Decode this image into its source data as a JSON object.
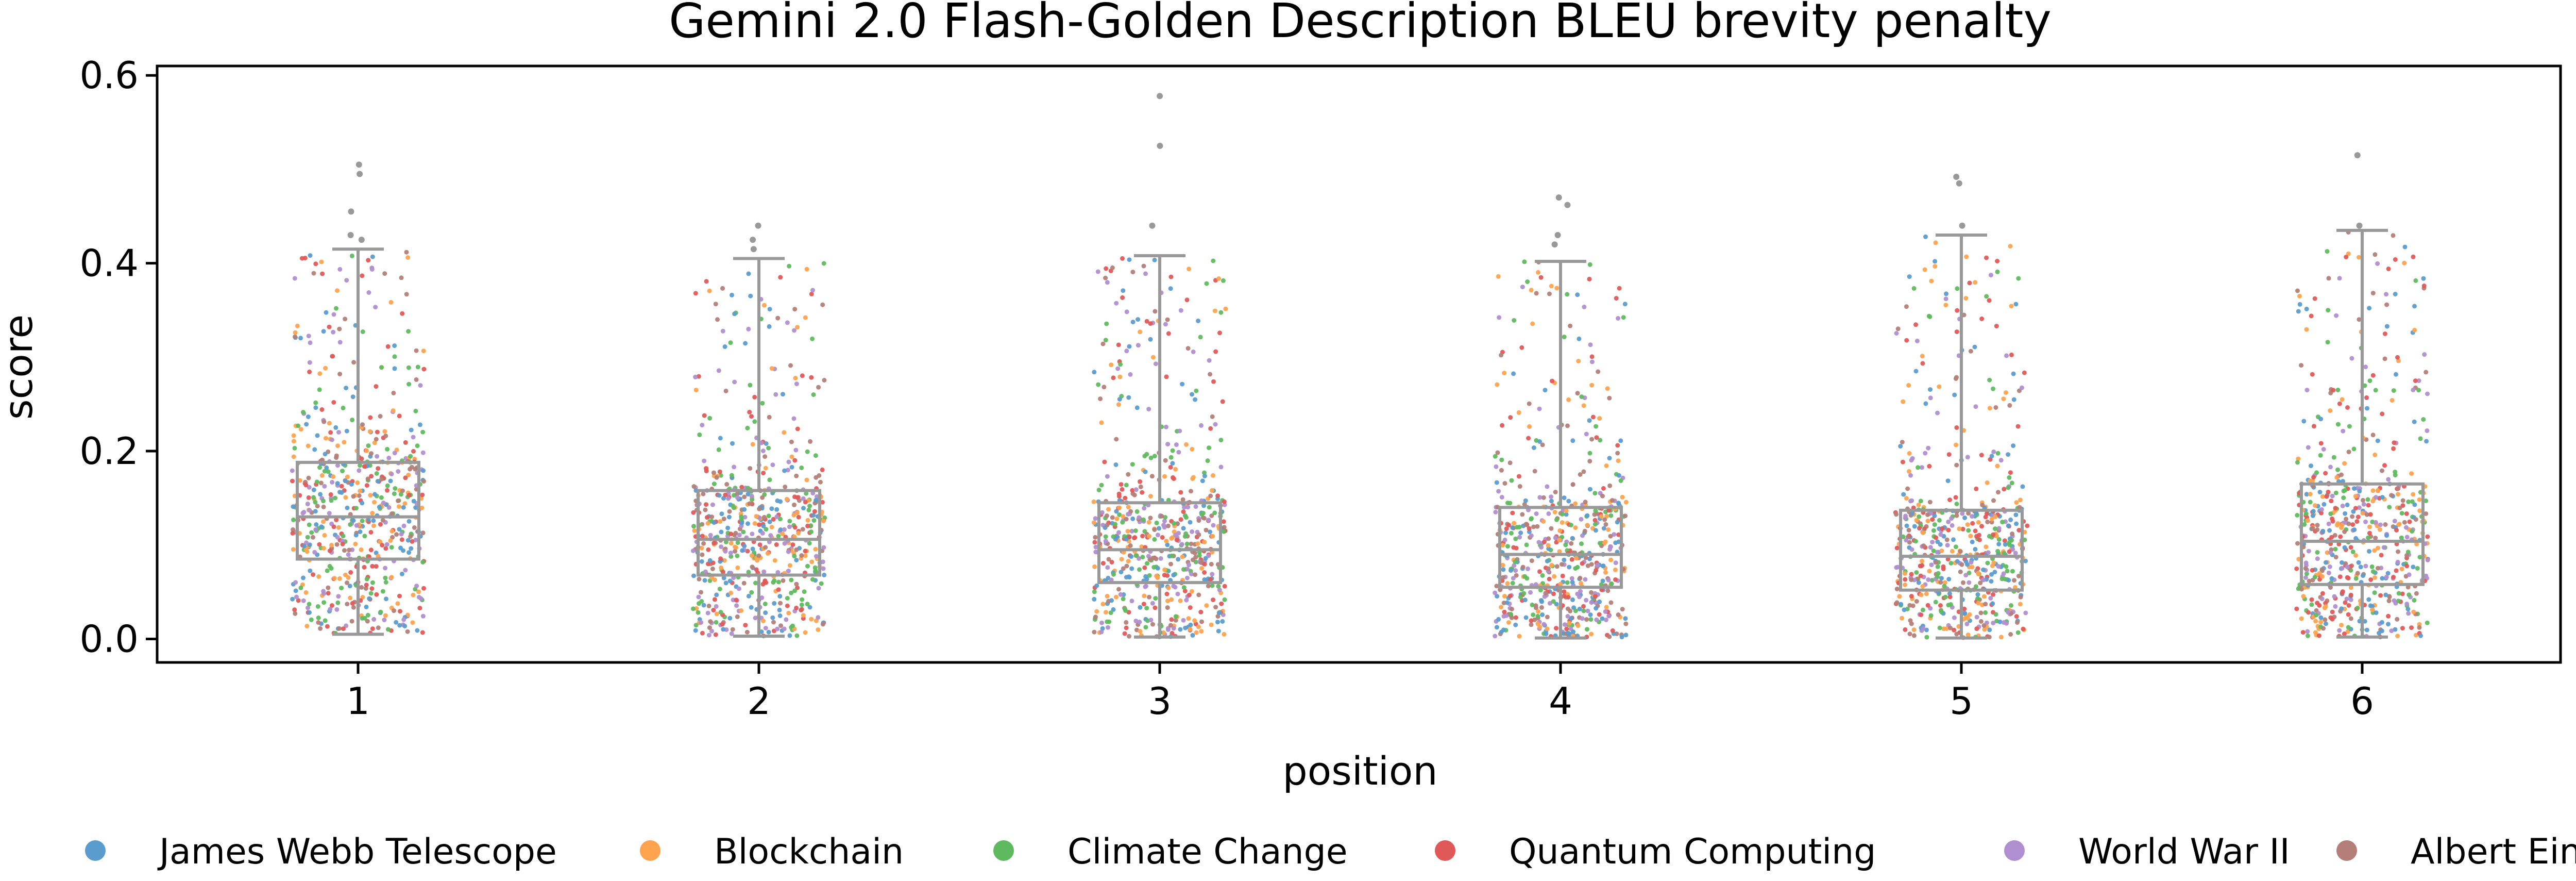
{
  "chart_data": {
    "type": "box_strip",
    "title": "Gemini 2.0 Flash-Golden Description BLEU brevity penalty",
    "xlabel": "position",
    "ylabel": "score",
    "categories": [
      "1",
      "2",
      "3",
      "4",
      "5",
      "6"
    ],
    "ylim": [
      -0.025,
      0.61
    ],
    "yticks": [
      "0.0",
      "0.2",
      "0.4",
      "0.6"
    ],
    "box_color": "#999999",
    "boxes": [
      {
        "position": "1",
        "q1": 0.085,
        "median": 0.13,
        "q3": 0.188,
        "whisker_low": 0.005,
        "whisker_high": 0.415,
        "outliers": [
          0.425,
          0.43,
          0.455,
          0.495,
          0.505
        ]
      },
      {
        "position": "2",
        "q1": 0.068,
        "median": 0.106,
        "q3": 0.158,
        "whisker_low": 0.003,
        "whisker_high": 0.405,
        "outliers": [
          0.415,
          0.425,
          0.44
        ]
      },
      {
        "position": "3",
        "q1": 0.06,
        "median": 0.095,
        "q3": 0.145,
        "whisker_low": 0.002,
        "whisker_high": 0.408,
        "outliers": [
          0.44,
          0.525,
          0.578
        ]
      },
      {
        "position": "4",
        "q1": 0.055,
        "median": 0.09,
        "q3": 0.14,
        "whisker_low": 0.001,
        "whisker_high": 0.402,
        "outliers": [
          0.42,
          0.43,
          0.462,
          0.47
        ]
      },
      {
        "position": "5",
        "q1": 0.052,
        "median": 0.088,
        "q3": 0.137,
        "whisker_low": 0.001,
        "whisker_high": 0.43,
        "outliers": [
          0.44,
          0.485,
          0.492
        ]
      },
      {
        "position": "6",
        "q1": 0.058,
        "median": 0.104,
        "q3": 0.165,
        "whisker_low": 0.002,
        "whisker_high": 0.435,
        "outliers": [
          0.44,
          0.515
        ]
      }
    ],
    "series": [
      {
        "name": "James Webb Telescope",
        "color": "#5b9ccf"
      },
      {
        "name": "Blockchain",
        "color": "#ffa34f"
      },
      {
        "name": "Climate Change",
        "color": "#5fba5f"
      },
      {
        "name": "Quantum Computing",
        "color": "#e05858"
      },
      {
        "name": "World War II",
        "color": "#b08fd0"
      },
      {
        "name": "Albert Einstein",
        "color": "#b37f78"
      }
    ],
    "legend_placement": "bottom",
    "grid": false
  }
}
